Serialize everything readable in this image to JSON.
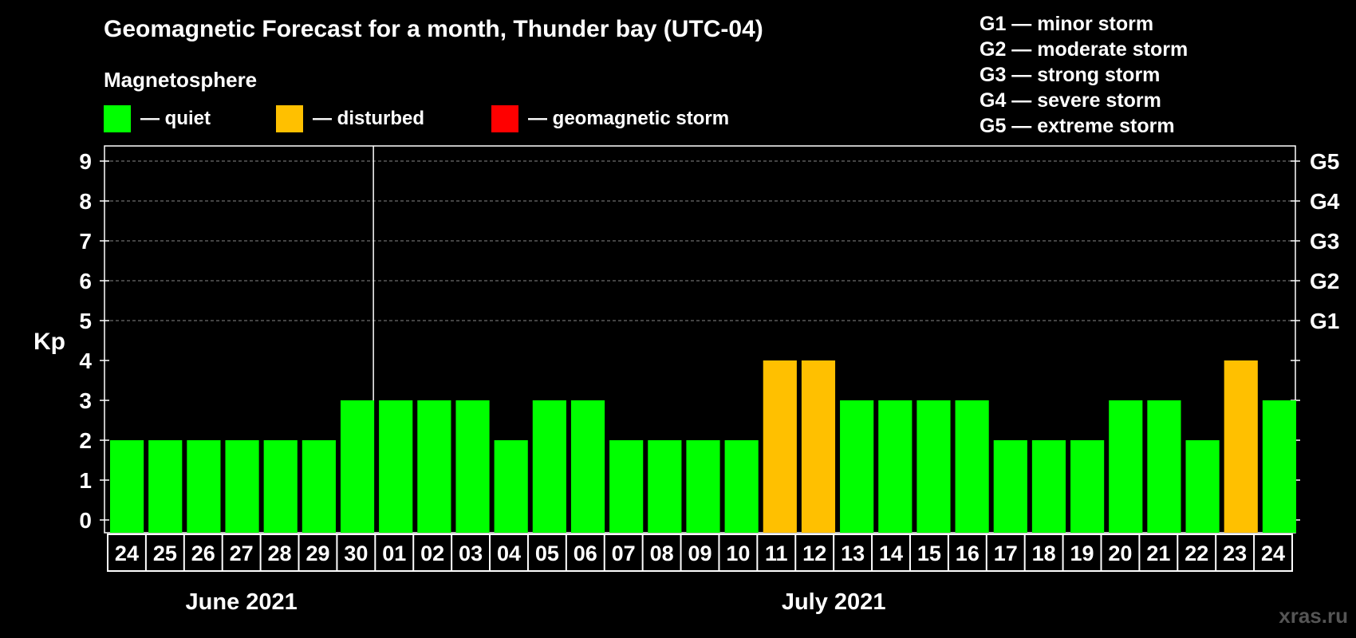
{
  "title": "Geomagnetic Forecast for a month, Thunder bay (UTC-04)",
  "subtitle": "Magnetosphere",
  "legend": [
    {
      "label": "— quiet",
      "color": "#00ff00"
    },
    {
      "label": "— disturbed",
      "color": "#ffc000"
    },
    {
      "label": "— geomagnetic storm",
      "color": "#ff0000"
    }
  ],
  "g_legend": [
    "G1 — minor storm",
    "G2 — moderate storm",
    "G3 — strong storm",
    "G4 — severe storm",
    "G5 — extreme storm"
  ],
  "watermark": "xras.ru",
  "chart_data": {
    "type": "bar",
    "title": "Geomagnetic Forecast for a month, Thunder bay (UTC-04)",
    "ylabel": "Kp",
    "ylim": [
      0,
      9
    ],
    "yticks": [
      "0",
      "1",
      "2",
      "3",
      "4",
      "5",
      "6",
      "7",
      "8",
      "9"
    ],
    "right_ticks": [
      {
        "kp": 5,
        "label": "G1"
      },
      {
        "kp": 6,
        "label": "G2"
      },
      {
        "kp": 7,
        "label": "G3"
      },
      {
        "kp": 8,
        "label": "G4"
      },
      {
        "kp": 9,
        "label": "G5"
      }
    ],
    "categories": [
      "24",
      "25",
      "26",
      "27",
      "28",
      "29",
      "30",
      "01",
      "02",
      "03",
      "04",
      "05",
      "06",
      "07",
      "08",
      "09",
      "10",
      "11",
      "12",
      "13",
      "14",
      "15",
      "16",
      "17",
      "18",
      "19",
      "20",
      "21",
      "22",
      "23",
      "24"
    ],
    "values": [
      2,
      2,
      2,
      2,
      2,
      2,
      3,
      3,
      3,
      3,
      2,
      3,
      3,
      2,
      2,
      2,
      2,
      4,
      4,
      3,
      3,
      3,
      3,
      2,
      2,
      2,
      3,
      3,
      2,
      4,
      3
    ],
    "months": [
      {
        "label": "June 2021",
        "start_index": 0,
        "end_index": 6
      },
      {
        "label": "July 2021",
        "start_index": 7,
        "end_index": 30
      }
    ],
    "colors": {
      "quiet": "#00ff00",
      "disturbed": "#ffc000",
      "storm": "#ff0000"
    },
    "grid": true
  }
}
